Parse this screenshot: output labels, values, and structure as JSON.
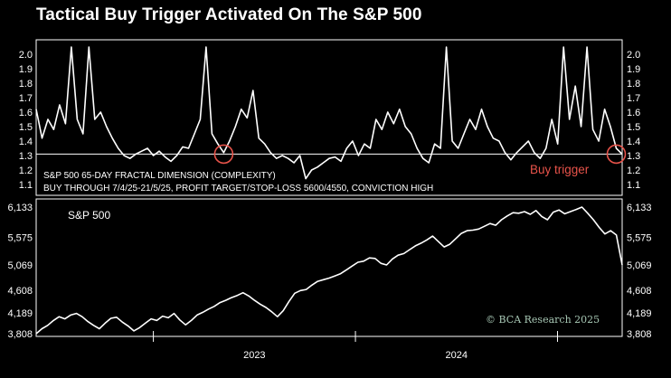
{
  "title": "Tactical Buy Trigger Activated On The S&P 500",
  "colors": {
    "background": "#000000",
    "line": "#ffffff",
    "trigger": "#e8534a",
    "copyright": "#a7c7b4"
  },
  "chart_data": [
    {
      "type": "line",
      "name": "fractal_dimension",
      "annotation_lines": [
        "S&P 500 65-DAY FRACTAL DIMENSION (COMPLEXITY)",
        "BUY THROUGH 7/4/25-21/5/25, PROFIT TARGET/STOP-LOSS 5600/4550, CONVICTION HIGH"
      ],
      "ylim": [
        1.05,
        2.05
      ],
      "yticks": [
        "2.0",
        "1.9",
        "1.8",
        "1.7",
        "1.6",
        "1.5",
        "1.4",
        "1.3",
        "1.2",
        "1.1"
      ],
      "threshold": 1.31,
      "buy_trigger_label": "Buy trigger",
      "circles_at_index": [
        32,
        99
      ],
      "values": [
        1.62,
        1.42,
        1.55,
        1.48,
        1.65,
        1.52,
        2.05,
        1.55,
        1.45,
        2.05,
        1.55,
        1.6,
        1.5,
        1.42,
        1.35,
        1.3,
        1.28,
        1.31,
        1.33,
        1.35,
        1.3,
        1.33,
        1.29,
        1.26,
        1.3,
        1.36,
        1.35,
        1.45,
        1.55,
        2.05,
        1.45,
        1.38,
        1.32,
        1.4,
        1.5,
        1.62,
        1.56,
        1.75,
        1.42,
        1.38,
        1.32,
        1.28,
        1.3,
        1.28,
        1.25,
        1.3,
        1.14,
        1.2,
        1.22,
        1.25,
        1.28,
        1.29,
        1.26,
        1.35,
        1.4,
        1.3,
        1.38,
        1.35,
        1.55,
        1.48,
        1.6,
        1.52,
        1.62,
        1.5,
        1.45,
        1.35,
        1.28,
        1.25,
        1.38,
        1.35,
        2.05,
        1.4,
        1.35,
        1.45,
        1.55,
        1.48,
        1.62,
        1.5,
        1.42,
        1.4,
        1.32,
        1.27,
        1.32,
        1.36,
        1.4,
        1.32,
        1.28,
        1.35,
        1.55,
        1.38,
        2.05,
        1.55,
        1.78,
        1.5,
        2.05,
        1.48,
        1.4,
        1.62,
        1.5,
        1.35,
        1.31
      ],
      "start_year_frac": 2022.42,
      "end_year_frac": 2025.32
    },
    {
      "type": "line",
      "name": "sp500",
      "label": "S&P 500",
      "ylim": [
        3808,
        6133
      ],
      "yticks": [
        "6,133",
        "5,575",
        "5,069",
        "4,608",
        "4,189",
        "3,808"
      ],
      "ytick_values": [
        6133,
        5575,
        5069,
        4608,
        4189,
        3808
      ],
      "xticks": [
        "2023",
        "2024"
      ],
      "xtick_years": [
        2023,
        2024
      ],
      "values": [
        3808,
        3900,
        3960,
        4050,
        4120,
        4080,
        4150,
        4180,
        4120,
        4030,
        3960,
        3900,
        4000,
        4090,
        4110,
        4020,
        3950,
        3860,
        3920,
        4000,
        4080,
        4050,
        4130,
        4100,
        4180,
        4060,
        3970,
        4050,
        4150,
        4200,
        4260,
        4310,
        4380,
        4420,
        4470,
        4510,
        4560,
        4500,
        4420,
        4350,
        4290,
        4210,
        4120,
        4230,
        4400,
        4550,
        4600,
        4620,
        4700,
        4770,
        4800,
        4830,
        4870,
        4910,
        4980,
        5050,
        5120,
        5140,
        5200,
        5190,
        5100,
        5070,
        5180,
        5250,
        5280,
        5350,
        5420,
        5470,
        5530,
        5600,
        5500,
        5400,
        5450,
        5550,
        5650,
        5700,
        5710,
        5730,
        5780,
        5830,
        5800,
        5900,
        5970,
        6030,
        6020,
        6050,
        6000,
        6070,
        5960,
        5900,
        6040,
        6080,
        6010,
        6050,
        6090,
        6133,
        6020,
        5900,
        5760,
        5640,
        5700,
        5620,
        5070
      ],
      "start_year_frac": 2022.42,
      "end_year_frac": 2025.32,
      "copyright": "© BCA Research 2025"
    }
  ]
}
